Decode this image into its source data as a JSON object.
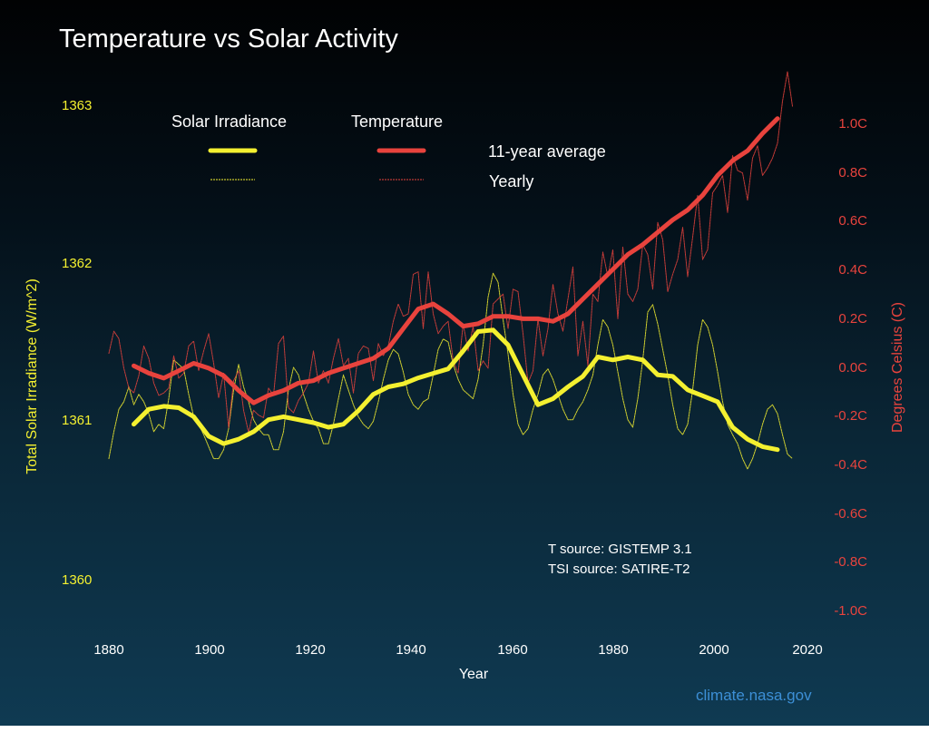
{
  "title": "Temperature vs Solar Activity",
  "colors": {
    "solar": "#f4f030",
    "temperature": "#e8433d",
    "credit": "#3c8fd6"
  },
  "legend": {
    "solar_header": "Solar Irradiance",
    "temp_header": "Temperature",
    "avg_label": "11-year average",
    "yearly_label": "Yearly"
  },
  "sources": {
    "t_source": "T source: GISTEMP 3.1",
    "tsi_source": "TSI source: SATIRE-T2"
  },
  "credit": "climate.nasa.gov",
  "chart_data": {
    "type": "line",
    "title": "Temperature vs Solar Activity",
    "xlabel": "Year",
    "ylabel_left": "Total Solar Irradiance (W/m^2)",
    "ylabel_right": "Degrees Celsius (C)",
    "xlim": [
      1880,
      2020
    ],
    "x_ticks": [
      "1880",
      "1900",
      "1920",
      "1940",
      "1960",
      "1980",
      "2000",
      "2020"
    ],
    "ylim_left": [
      1359.85,
      1363.15
    ],
    "left_ticks": [
      "1363",
      "1362",
      "1361",
      "1360"
    ],
    "ylim_right": [
      -1.0,
      1.0
    ],
    "right_ticks": [
      "1.0C",
      "0.8C",
      "0.6C",
      "0.4C",
      "0.2C",
      "0.0C",
      "-0.2C",
      "-0.4C",
      "-0.6C",
      "-0.8C",
      "-1.0C"
    ],
    "series": [
      {
        "name": "Solar Irradiance 11-year average",
        "axis": "left",
        "style": "thick",
        "x": [
          1885,
          1888,
          1891,
          1894,
          1897,
          1900,
          1903,
          1906,
          1909,
          1912,
          1915,
          1918,
          1921,
          1924,
          1927,
          1930,
          1933,
          1936,
          1939,
          1942,
          1945,
          1948,
          1951,
          1954,
          1957,
          1960,
          1963,
          1966,
          1969,
          1972,
          1975,
          1978,
          1981,
          1984,
          1987,
          1990,
          1993,
          1996,
          1999,
          2002,
          2005,
          2008,
          2011,
          2014
        ],
        "y": [
          1360.95,
          1361.05,
          1361.07,
          1361.06,
          1361.0,
          1360.87,
          1360.82,
          1360.85,
          1360.9,
          1360.98,
          1361.0,
          1360.98,
          1360.96,
          1360.93,
          1360.95,
          1361.04,
          1361.15,
          1361.2,
          1361.22,
          1361.26,
          1361.29,
          1361.32,
          1361.44,
          1361.57,
          1361.58,
          1361.48,
          1361.28,
          1361.08,
          1361.12,
          1361.2,
          1361.27,
          1361.4,
          1361.38,
          1361.4,
          1361.38,
          1361.28,
          1361.27,
          1361.18,
          1361.14,
          1361.1,
          1360.93,
          1360.85,
          1360.8,
          1360.78
        ]
      },
      {
        "name": "Solar Irradiance yearly",
        "axis": "left",
        "style": "thin",
        "x": [
          1880,
          1881,
          1882,
          1883,
          1884,
          1885,
          1886,
          1887,
          1888,
          1889,
          1890,
          1891,
          1892,
          1893,
          1894,
          1895,
          1896,
          1897,
          1898,
          1899,
          1900,
          1901,
          1902,
          1903,
          1904,
          1905,
          1906,
          1907,
          1908,
          1909,
          1910,
          1911,
          1912,
          1913,
          1914,
          1915,
          1916,
          1917,
          1918,
          1919,
          1920,
          1921,
          1922,
          1923,
          1924,
          1925,
          1926,
          1927,
          1928,
          1929,
          1930,
          1931,
          1932,
          1933,
          1934,
          1935,
          1936,
          1937,
          1938,
          1939,
          1940,
          1941,
          1942,
          1943,
          1944,
          1945,
          1946,
          1947,
          1948,
          1949,
          1950,
          1951,
          1952,
          1953,
          1954,
          1955,
          1956,
          1957,
          1958,
          1959,
          1960,
          1961,
          1962,
          1963,
          1964,
          1965,
          1966,
          1967,
          1968,
          1969,
          1970,
          1971,
          1972,
          1973,
          1974,
          1975,
          1976,
          1977,
          1978,
          1979,
          1980,
          1981,
          1982,
          1983,
          1984,
          1985,
          1986,
          1987,
          1988,
          1989,
          1990,
          1991,
          1992,
          1993,
          1994,
          1995,
          1996,
          1997,
          1998,
          1999,
          2000,
          2001,
          2002,
          2003,
          2004,
          2005,
          2006,
          2007,
          2008,
          2009,
          2010,
          2011,
          2012,
          2013,
          2014,
          2015,
          2016,
          2017
        ],
        "y": [
          1360.72,
          1360.9,
          1361.05,
          1361.1,
          1361.2,
          1361.08,
          1361.15,
          1361.1,
          1361.02,
          1360.9,
          1360.95,
          1360.92,
          1361.12,
          1361.38,
          1361.35,
          1361.32,
          1361.15,
          1361.0,
          1360.95,
          1360.88,
          1360.8,
          1360.72,
          1360.72,
          1360.78,
          1360.92,
          1361.18,
          1361.35,
          1361.2,
          1361.1,
          1360.98,
          1360.92,
          1360.88,
          1360.88,
          1360.78,
          1360.78,
          1360.9,
          1361.18,
          1361.33,
          1361.28,
          1361.15,
          1361.05,
          1360.97,
          1360.92,
          1360.82,
          1360.82,
          1360.95,
          1361.12,
          1361.28,
          1361.18,
          1361.08,
          1361.0,
          1360.95,
          1360.92,
          1360.97,
          1361.1,
          1361.25,
          1361.38,
          1361.45,
          1361.42,
          1361.3,
          1361.15,
          1361.08,
          1361.05,
          1361.1,
          1361.12,
          1361.28,
          1361.45,
          1361.52,
          1361.5,
          1361.35,
          1361.25,
          1361.18,
          1361.15,
          1361.12,
          1361.25,
          1361.48,
          1361.8,
          1361.96,
          1361.9,
          1361.65,
          1361.42,
          1361.15,
          1360.95,
          1360.88,
          1360.92,
          1361.05,
          1361.15,
          1361.28,
          1361.32,
          1361.25,
          1361.15,
          1361.05,
          1360.98,
          1360.98,
          1361.05,
          1361.1,
          1361.18,
          1361.28,
          1361.48,
          1361.65,
          1361.6,
          1361.48,
          1361.3,
          1361.12,
          1360.98,
          1360.93,
          1361.12,
          1361.38,
          1361.7,
          1361.75,
          1361.62,
          1361.45,
          1361.28,
          1361.08,
          1360.92,
          1360.88,
          1360.95,
          1361.18,
          1361.48,
          1361.65,
          1361.6,
          1361.48,
          1361.3,
          1361.1,
          1360.95,
          1360.88,
          1360.82,
          1360.72,
          1360.65,
          1360.72,
          1360.82,
          1360.95,
          1361.05,
          1361.08,
          1361.02,
          1360.88,
          1360.75,
          1360.72
        ]
      },
      {
        "name": "Temperature 11-year average",
        "axis": "right",
        "style": "thick",
        "x": [
          1885,
          1888,
          1891,
          1894,
          1897,
          1900,
          1903,
          1906,
          1909,
          1912,
          1915,
          1918,
          1921,
          1924,
          1927,
          1930,
          1933,
          1936,
          1939,
          1942,
          1945,
          1948,
          1951,
          1954,
          1957,
          1960,
          1963,
          1966,
          1969,
          1972,
          1975,
          1978,
          1981,
          1984,
          1987,
          1990,
          1993,
          1996,
          1999,
          2002,
          2005,
          2008,
          2011,
          2014
        ],
        "y": [
          -0.01,
          -0.04,
          -0.06,
          -0.03,
          0.0,
          -0.02,
          -0.05,
          -0.11,
          -0.16,
          -0.13,
          -0.11,
          -0.08,
          -0.07,
          -0.04,
          -0.02,
          0.0,
          0.02,
          0.06,
          0.14,
          0.22,
          0.24,
          0.2,
          0.15,
          0.16,
          0.19,
          0.19,
          0.18,
          0.18,
          0.17,
          0.2,
          0.26,
          0.32,
          0.38,
          0.44,
          0.48,
          0.53,
          0.58,
          0.62,
          0.68,
          0.76,
          0.82,
          0.86,
          0.93,
          0.99
        ]
      },
      {
        "name": "Temperature yearly",
        "axis": "right",
        "style": "thin",
        "x": [
          1880,
          1881,
          1882,
          1883,
          1884,
          1885,
          1886,
          1887,
          1888,
          1889,
          1890,
          1891,
          1892,
          1893,
          1894,
          1895,
          1896,
          1897,
          1898,
          1899,
          1900,
          1901,
          1902,
          1903,
          1904,
          1905,
          1906,
          1907,
          1908,
          1909,
          1910,
          1911,
          1912,
          1913,
          1914,
          1915,
          1916,
          1917,
          1918,
          1919,
          1920,
          1921,
          1922,
          1923,
          1924,
          1925,
          1926,
          1927,
          1928,
          1929,
          1930,
          1931,
          1932,
          1933,
          1934,
          1935,
          1936,
          1937,
          1938,
          1939,
          1940,
          1941,
          1942,
          1943,
          1944,
          1945,
          1946,
          1947,
          1948,
          1949,
          1950,
          1951,
          1952,
          1953,
          1954,
          1955,
          1956,
          1957,
          1958,
          1959,
          1960,
          1961,
          1962,
          1963,
          1964,
          1965,
          1966,
          1967,
          1968,
          1969,
          1970,
          1971,
          1972,
          1973,
          1974,
          1975,
          1976,
          1977,
          1978,
          1979,
          1980,
          1981,
          1982,
          1983,
          1984,
          1985,
          1986,
          1987,
          1988,
          1989,
          1990,
          1991,
          1992,
          1993,
          1994,
          1995,
          1996,
          1997,
          1998,
          1999,
          2000,
          2001,
          2002,
          2003,
          2004,
          2005,
          2006,
          2007,
          2008,
          2009,
          2010,
          2011,
          2012,
          2013,
          2014,
          2015,
          2016,
          2017
        ],
        "y": [
          0.04,
          0.13,
          0.1,
          -0.02,
          -0.1,
          -0.12,
          -0.05,
          0.07,
          0.02,
          -0.08,
          -0.13,
          -0.12,
          -0.1,
          0.03,
          -0.06,
          -0.04,
          0.07,
          0.09,
          -0.03,
          0.05,
          0.12,
          0.0,
          -0.14,
          -0.04,
          -0.26,
          -0.07,
          -0.03,
          -0.19,
          -0.28,
          -0.19,
          -0.21,
          -0.22,
          -0.1,
          -0.13,
          0.08,
          0.11,
          -0.18,
          -0.2,
          -0.15,
          -0.12,
          -0.08,
          0.05,
          -0.08,
          -0.03,
          -0.08,
          0.02,
          0.1,
          -0.01,
          0.02,
          -0.12,
          0.04,
          0.07,
          0.06,
          -0.07,
          0.08,
          0.03,
          0.07,
          0.17,
          0.24,
          0.19,
          0.2,
          0.36,
          0.37,
          0.14,
          0.37,
          0.2,
          0.12,
          0.15,
          0.17,
          0.01,
          -0.04,
          0.16,
          0.05,
          0.15,
          -0.03,
          0.01,
          -0.02,
          0.24,
          0.26,
          0.28,
          0.14,
          0.3,
          0.29,
          0.12,
          -0.08,
          -0.03,
          0.18,
          0.03,
          0.14,
          0.32,
          0.2,
          0.13,
          0.26,
          0.39,
          0.03,
          0.17,
          -0.01,
          0.28,
          0.25,
          0.45,
          0.35,
          0.46,
          0.18,
          0.47,
          0.28,
          0.25,
          0.3,
          0.48,
          0.44,
          0.3,
          0.57,
          0.5,
          0.29,
          0.36,
          0.42,
          0.55,
          0.35,
          0.51,
          0.68,
          0.42,
          0.46,
          0.69,
          0.72,
          0.76,
          0.61,
          0.84,
          0.78,
          0.77,
          0.66,
          0.83,
          0.88,
          0.76,
          0.79,
          0.83,
          0.89,
          1.06,
          1.18,
          1.04
        ]
      }
    ]
  }
}
